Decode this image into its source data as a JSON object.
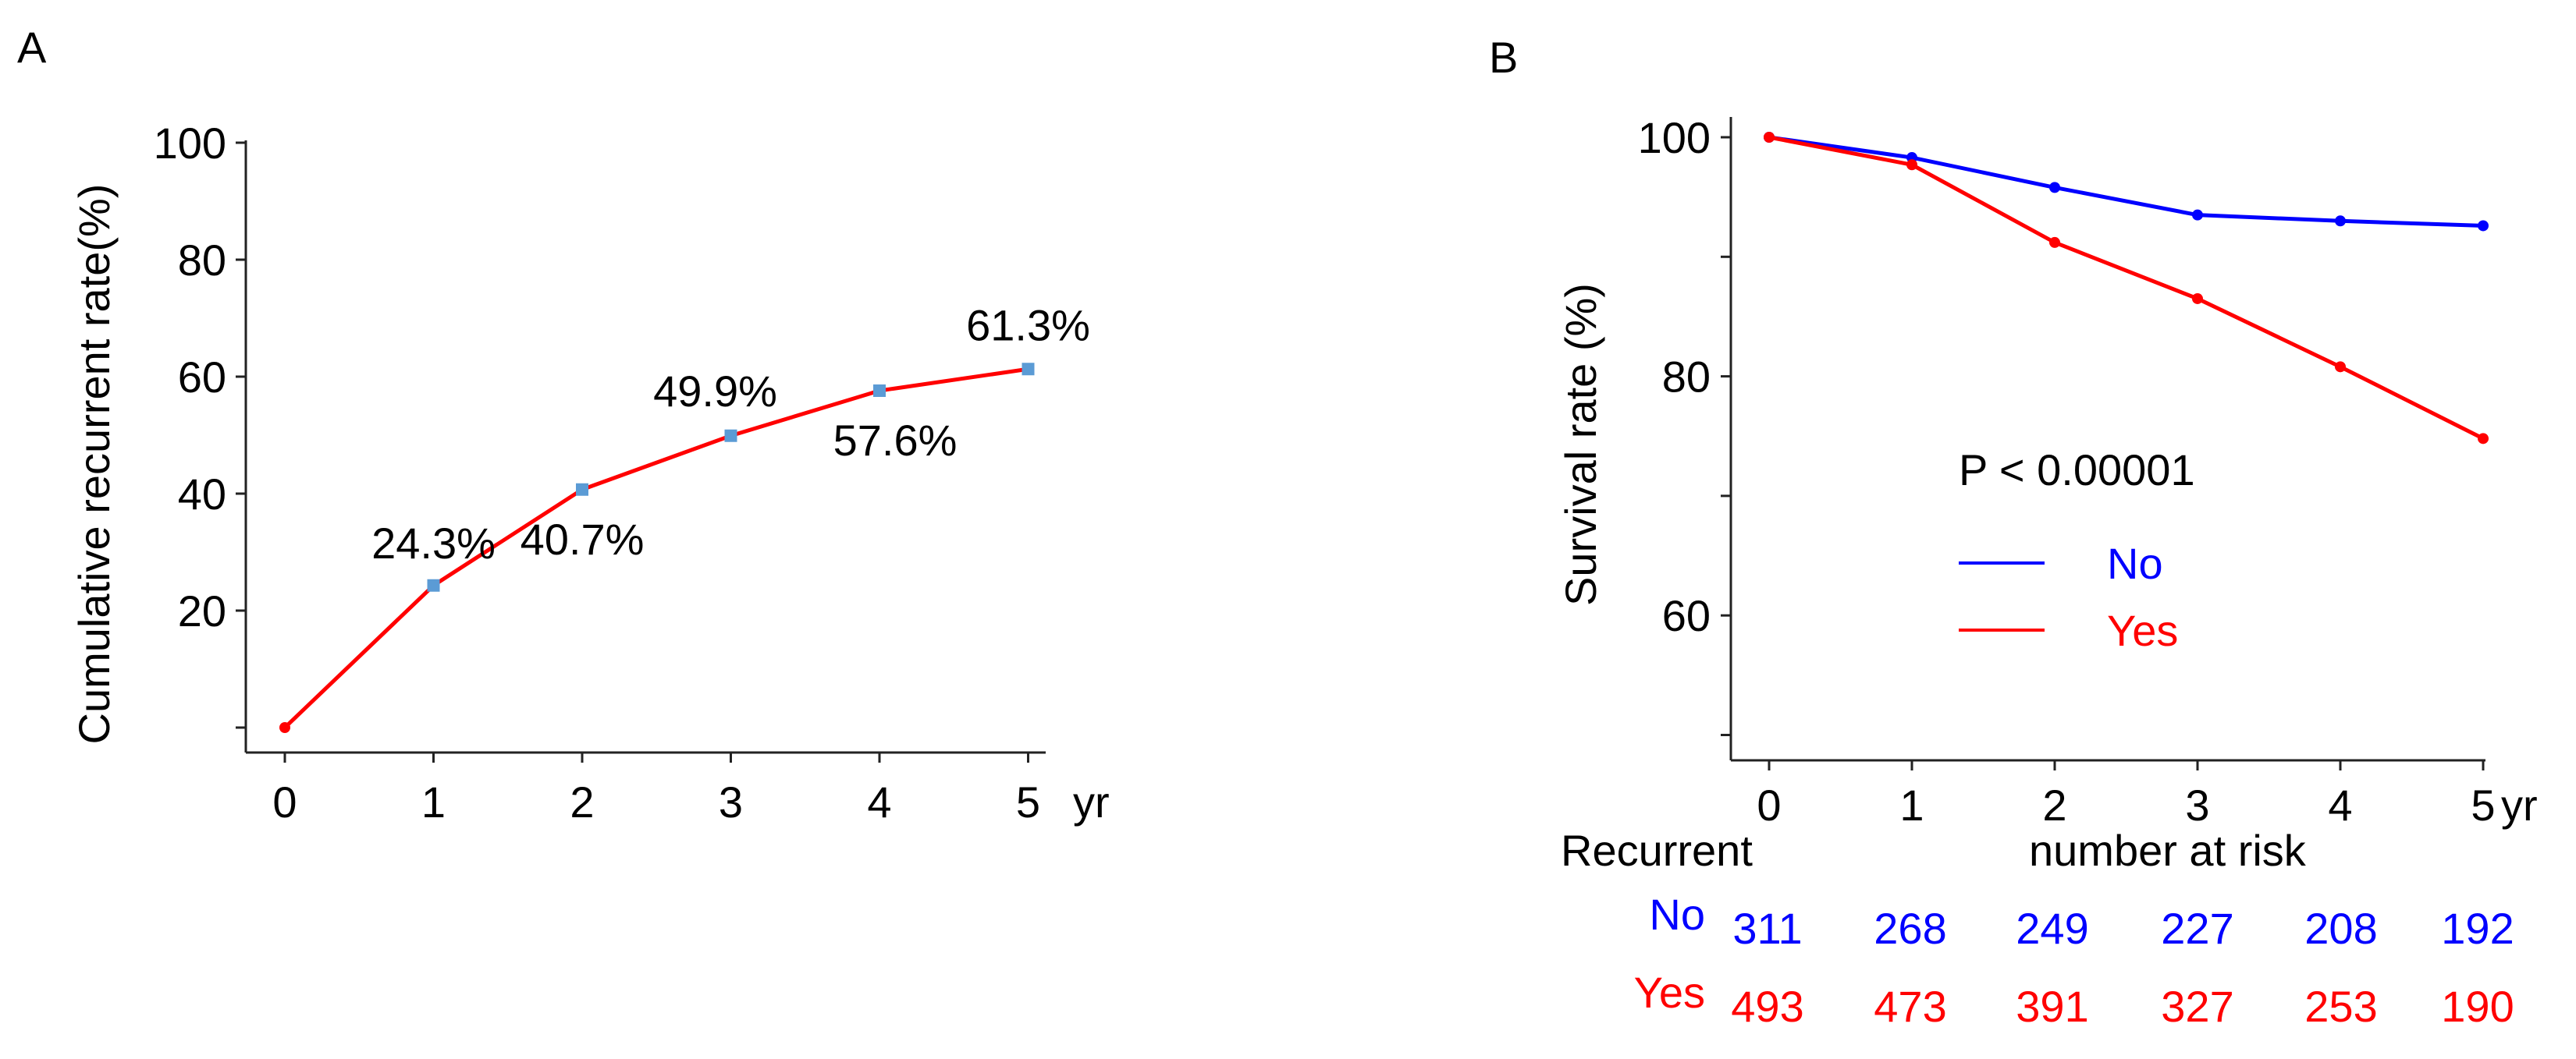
{
  "chart_data": [
    {
      "panel_label": "A",
      "type": "line",
      "xlabel": "",
      "ylabel": "Cumulative recurrent rate(%)",
      "x_unit": "yr",
      "x_ticks": [
        "0",
        "1",
        "2",
        "3",
        "4",
        "5"
      ],
      "y_ticks": [
        "",
        "20",
        "40",
        "60",
        "80",
        "100"
      ],
      "xlim": [
        0,
        5
      ],
      "ylim": [
        0,
        100
      ],
      "grid": false,
      "series": [
        {
          "color": "#ff0000",
          "marker_color": "#5b9bd5",
          "points": [
            {
              "x": 0,
              "y": 0,
              "label": ""
            },
            {
              "x": 1,
              "y": 24.3,
              "label": "24.3%"
            },
            {
              "x": 2,
              "y": 40.7,
              "label": "40.7%"
            },
            {
              "x": 3,
              "y": 49.9,
              "label": "49.9%"
            },
            {
              "x": 4,
              "y": 57.6,
              "label": "57.6%"
            },
            {
              "x": 5,
              "y": 61.3,
              "label": "61.3%"
            }
          ]
        }
      ]
    },
    {
      "panel_label": "B",
      "type": "line",
      "xlabel": "",
      "ylabel": "Survival rate (%)",
      "x_unit": "yr",
      "x_ticks": [
        "0",
        "1",
        "2",
        "3",
        "4",
        "5"
      ],
      "y_ticks": [
        "100",
        "80",
        "60"
      ],
      "y_tick_values": [
        100,
        80,
        60
      ],
      "xlim": [
        0,
        5
      ],
      "ylim": [
        50,
        100
      ],
      "grid": false,
      "annotation": "P < 0.00001",
      "legend_placement": "center",
      "series": [
        {
          "name": "No",
          "color": "#0000ff",
          "points": [
            {
              "x": 0,
              "y": 100
            },
            {
              "x": 1,
              "y": 98.3
            },
            {
              "x": 2,
              "y": 95.8
            },
            {
              "x": 3,
              "y": 93.5
            },
            {
              "x": 4,
              "y": 93.0
            },
            {
              "x": 5,
              "y": 92.6
            }
          ]
        },
        {
          "name": "Yes",
          "color": "#ff0000",
          "points": [
            {
              "x": 0,
              "y": 100
            },
            {
              "x": 1,
              "y": 97.7
            },
            {
              "x": 2,
              "y": 91.2
            },
            {
              "x": 3,
              "y": 86.5
            },
            {
              "x": 4,
              "y": 80.8
            },
            {
              "x": 5,
              "y": 74.8
            }
          ]
        }
      ],
      "risk_table": {
        "title_left": "Recurrent",
        "title_right": "number at risk",
        "rows": [
          {
            "label": "No",
            "color": "#0000ff",
            "values": [
              "311",
              "268",
              "249",
              "227",
              "208",
              "192"
            ]
          },
          {
            "label": "Yes",
            "color": "#ff0000",
            "values": [
              "493",
              "473",
              "391",
              "327",
              "253",
              "190"
            ]
          }
        ]
      }
    }
  ]
}
